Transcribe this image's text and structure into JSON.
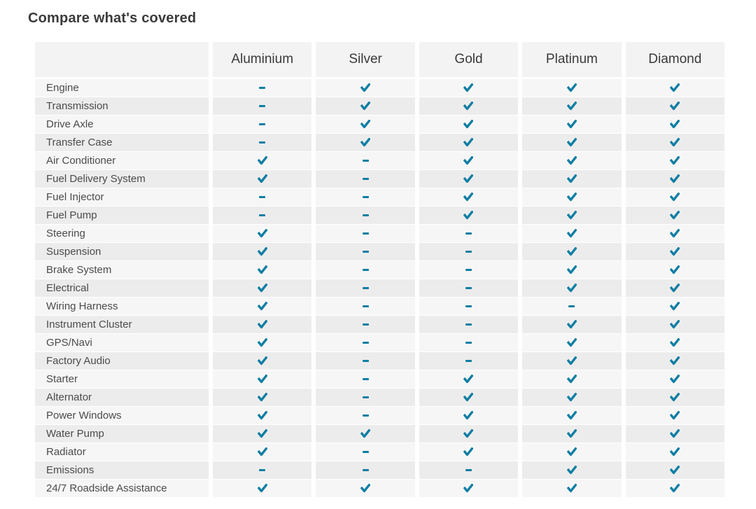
{
  "title": "Compare what's covered",
  "colors": {
    "accent": "#0e7ea3",
    "header_bg": "#f4f3f3",
    "row_odd_bg": "#f7f6f6",
    "row_even_bg": "#edecec",
    "title_text": "#3b3b3b",
    "label_text": "#4b4b4b"
  },
  "icons": {
    "check": "check-icon",
    "dash": "dash-icon"
  },
  "table": {
    "columns": [
      "Aluminium",
      "Silver",
      "Gold",
      "Platinum",
      "Diamond"
    ],
    "rows": [
      {
        "label": "Engine",
        "cells": [
          "dash",
          "check",
          "check",
          "check",
          "check"
        ]
      },
      {
        "label": "Transmission",
        "cells": [
          "dash",
          "check",
          "check",
          "check",
          "check"
        ]
      },
      {
        "label": "Drive Axle",
        "cells": [
          "dash",
          "check",
          "check",
          "check",
          "check"
        ]
      },
      {
        "label": "Transfer Case",
        "cells": [
          "dash",
          "check",
          "check",
          "check",
          "check"
        ]
      },
      {
        "label": "Air Conditioner",
        "cells": [
          "check",
          "dash",
          "check",
          "check",
          "check"
        ]
      },
      {
        "label": "Fuel Delivery System",
        "cells": [
          "check",
          "dash",
          "check",
          "check",
          "check"
        ]
      },
      {
        "label": "Fuel Injector",
        "cells": [
          "dash",
          "dash",
          "check",
          "check",
          "check"
        ]
      },
      {
        "label": "Fuel Pump",
        "cells": [
          "dash",
          "dash",
          "check",
          "check",
          "check"
        ]
      },
      {
        "label": "Steering",
        "cells": [
          "check",
          "dash",
          "dash",
          "check",
          "check"
        ]
      },
      {
        "label": "Suspension",
        "cells": [
          "check",
          "dash",
          "dash",
          "check",
          "check"
        ]
      },
      {
        "label": "Brake System",
        "cells": [
          "check",
          "dash",
          "dash",
          "check",
          "check"
        ]
      },
      {
        "label": "Electrical",
        "cells": [
          "check",
          "dash",
          "dash",
          "check",
          "check"
        ]
      },
      {
        "label": "Wiring Harness",
        "cells": [
          "check",
          "dash",
          "dash",
          "dash",
          "check"
        ]
      },
      {
        "label": "Instrument Cluster",
        "cells": [
          "check",
          "dash",
          "dash",
          "check",
          "check"
        ]
      },
      {
        "label": "GPS/Navi",
        "cells": [
          "check",
          "dash",
          "dash",
          "check",
          "check"
        ]
      },
      {
        "label": "Factory Audio",
        "cells": [
          "check",
          "dash",
          "dash",
          "check",
          "check"
        ]
      },
      {
        "label": "Starter",
        "cells": [
          "check",
          "dash",
          "check",
          "check",
          "check"
        ]
      },
      {
        "label": "Alternator",
        "cells": [
          "check",
          "dash",
          "check",
          "check",
          "check"
        ]
      },
      {
        "label": "Power Windows",
        "cells": [
          "check",
          "dash",
          "check",
          "check",
          "check"
        ]
      },
      {
        "label": "Water Pump",
        "cells": [
          "check",
          "check",
          "check",
          "check",
          "check"
        ]
      },
      {
        "label": "Radiator",
        "cells": [
          "check",
          "dash",
          "check",
          "check",
          "check"
        ]
      },
      {
        "label": "Emissions",
        "cells": [
          "dash",
          "dash",
          "dash",
          "check",
          "check"
        ]
      },
      {
        "label": "24/7 Roadside Assistance",
        "cells": [
          "check",
          "check",
          "check",
          "check",
          "check"
        ]
      }
    ]
  }
}
